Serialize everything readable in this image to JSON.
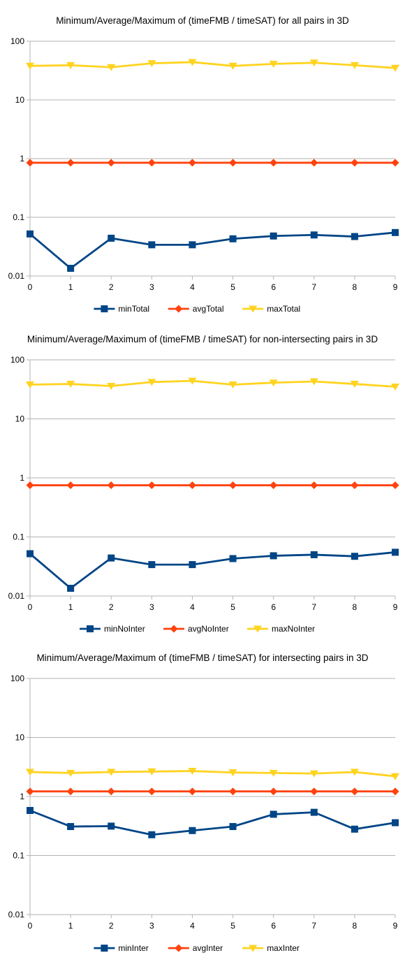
{
  "colors": {
    "min": "#004586",
    "avg": "#ff420e",
    "max": "#ffd320",
    "grid": "#b3b3b3",
    "axis": "#b3b3b3"
  },
  "chart_data": [
    {
      "type": "line",
      "title": "Minimum/Average/Maximum of (timeFMB / timeSAT) for all pairs in 3D",
      "xlabel": "",
      "ylabel": "",
      "yscale": "log",
      "ylim": [
        0.01,
        100
      ],
      "yticks": [
        "100",
        "10",
        "1",
        "0.1",
        "0.01"
      ],
      "x": [
        0,
        1,
        2,
        3,
        4,
        5,
        6,
        7,
        8,
        9
      ],
      "legend_position": "bottom",
      "grid": true,
      "series": [
        {
          "name": "minTotal",
          "marker": "square",
          "values": [
            0.052,
            0.0135,
            0.044,
            0.034,
            0.034,
            0.043,
            0.048,
            0.05,
            0.047,
            0.055
          ]
        },
        {
          "name": "avgTotal",
          "marker": "diamond",
          "values": [
            0.85,
            0.85,
            0.85,
            0.85,
            0.85,
            0.85,
            0.85,
            0.85,
            0.85,
            0.85
          ]
        },
        {
          "name": "maxTotal",
          "marker": "triangle-down",
          "values": [
            38,
            39,
            36,
            42,
            44,
            38,
            41,
            43,
            39,
            35
          ]
        }
      ]
    },
    {
      "type": "line",
      "title": "Minimum/Average/Maximum of (timeFMB / timeSAT) for non-intersecting pairs in 3D",
      "xlabel": "",
      "ylabel": "",
      "yscale": "log",
      "ylim": [
        0.01,
        100
      ],
      "yticks": [
        "100",
        "10",
        "1",
        "0.1",
        "0.01"
      ],
      "x": [
        0,
        1,
        2,
        3,
        4,
        5,
        6,
        7,
        8,
        9
      ],
      "legend_position": "bottom",
      "grid": true,
      "series": [
        {
          "name": "minNoInter",
          "marker": "square",
          "values": [
            0.052,
            0.0135,
            0.044,
            0.034,
            0.034,
            0.043,
            0.048,
            0.05,
            0.047,
            0.055
          ]
        },
        {
          "name": "avgNoInter",
          "marker": "diamond",
          "values": [
            0.75,
            0.75,
            0.75,
            0.75,
            0.75,
            0.75,
            0.75,
            0.75,
            0.75,
            0.75
          ]
        },
        {
          "name": "maxNoInter",
          "marker": "triangle-down",
          "values": [
            38,
            39,
            36,
            42,
            44,
            38,
            41,
            43,
            39,
            35
          ]
        }
      ]
    },
    {
      "type": "line",
      "title": "Minimum/Average/Maximum of (timeFMB / timeSAT) for intersecting pairs in 3D",
      "xlabel": "",
      "ylabel": "",
      "yscale": "log",
      "ylim": [
        0.01,
        100
      ],
      "yticks": [
        "100",
        "10",
        "1",
        "0.1",
        "0.01"
      ],
      "x": [
        0,
        1,
        2,
        3,
        4,
        5,
        6,
        7,
        8,
        9
      ],
      "legend_position": "bottom",
      "grid": true,
      "series": [
        {
          "name": "minInter",
          "marker": "square",
          "values": [
            0.58,
            0.31,
            0.315,
            0.225,
            0.265,
            0.31,
            0.5,
            0.54,
            0.28,
            0.36
          ]
        },
        {
          "name": "avgInter",
          "marker": "diamond",
          "values": [
            1.22,
            1.22,
            1.22,
            1.22,
            1.22,
            1.22,
            1.22,
            1.22,
            1.22,
            1.22
          ]
        },
        {
          "name": "maxInter",
          "marker": "triangle-down",
          "values": [
            2.6,
            2.5,
            2.6,
            2.65,
            2.7,
            2.55,
            2.5,
            2.45,
            2.6,
            2.2
          ]
        }
      ]
    }
  ]
}
